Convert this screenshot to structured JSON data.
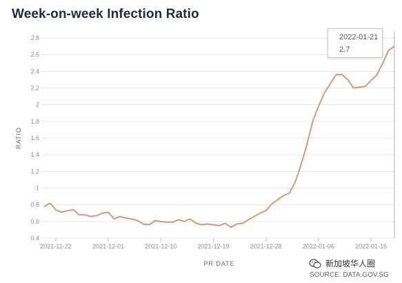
{
  "title": "Week-on-week Infection Ratio",
  "tooltip": {
    "date": "2022-01-21",
    "value": "2.7"
  },
  "watermark": "新加坡华人圈",
  "source": "SOURCE: DATA.GOV.SG",
  "colors": {
    "line": "#d88c6d",
    "grid": "#e6e6e6",
    "title": "#1f2a44"
  },
  "chart_data": {
    "type": "line",
    "xlabel": "PR DATE",
    "ylabel": "RATIO",
    "ylim": [
      0.4,
      2.8
    ],
    "yticks": [
      "0.4",
      "0.6",
      "0.8",
      "1",
      "1.2",
      "1.4",
      "1.6",
      "1.8",
      "2",
      "2.2",
      "2.4",
      "2.6",
      "2.8"
    ],
    "xticks": [
      "2021-11-22",
      "2021-12-01",
      "2021-12-10",
      "2021-12-19",
      "2021-12-28",
      "2022-01-06",
      "2022-01-15"
    ],
    "grid": true,
    "x_start": "2021-11-20",
    "series": [
      {
        "values": [
          0.78,
          0.82,
          0.74,
          0.71,
          0.73,
          0.74,
          0.68,
          0.68,
          0.66,
          0.67,
          0.7,
          0.71,
          0.63,
          0.66,
          0.64,
          0.63,
          0.61,
          0.57,
          0.56,
          0.61,
          0.6,
          0.59,
          0.59,
          0.62,
          0.6,
          0.63,
          0.58,
          0.56,
          0.57,
          0.56,
          0.55,
          0.58,
          0.53,
          0.57,
          0.58,
          0.62,
          0.66,
          0.7,
          0.73,
          0.81,
          0.86,
          0.91,
          0.94,
          1.07,
          1.28,
          1.52,
          1.8,
          1.98,
          2.14,
          2.25,
          2.36,
          2.36,
          2.3,
          2.2,
          2.21,
          2.22,
          2.29,
          2.36,
          2.5,
          2.65,
          2.7
        ]
      }
    ]
  }
}
